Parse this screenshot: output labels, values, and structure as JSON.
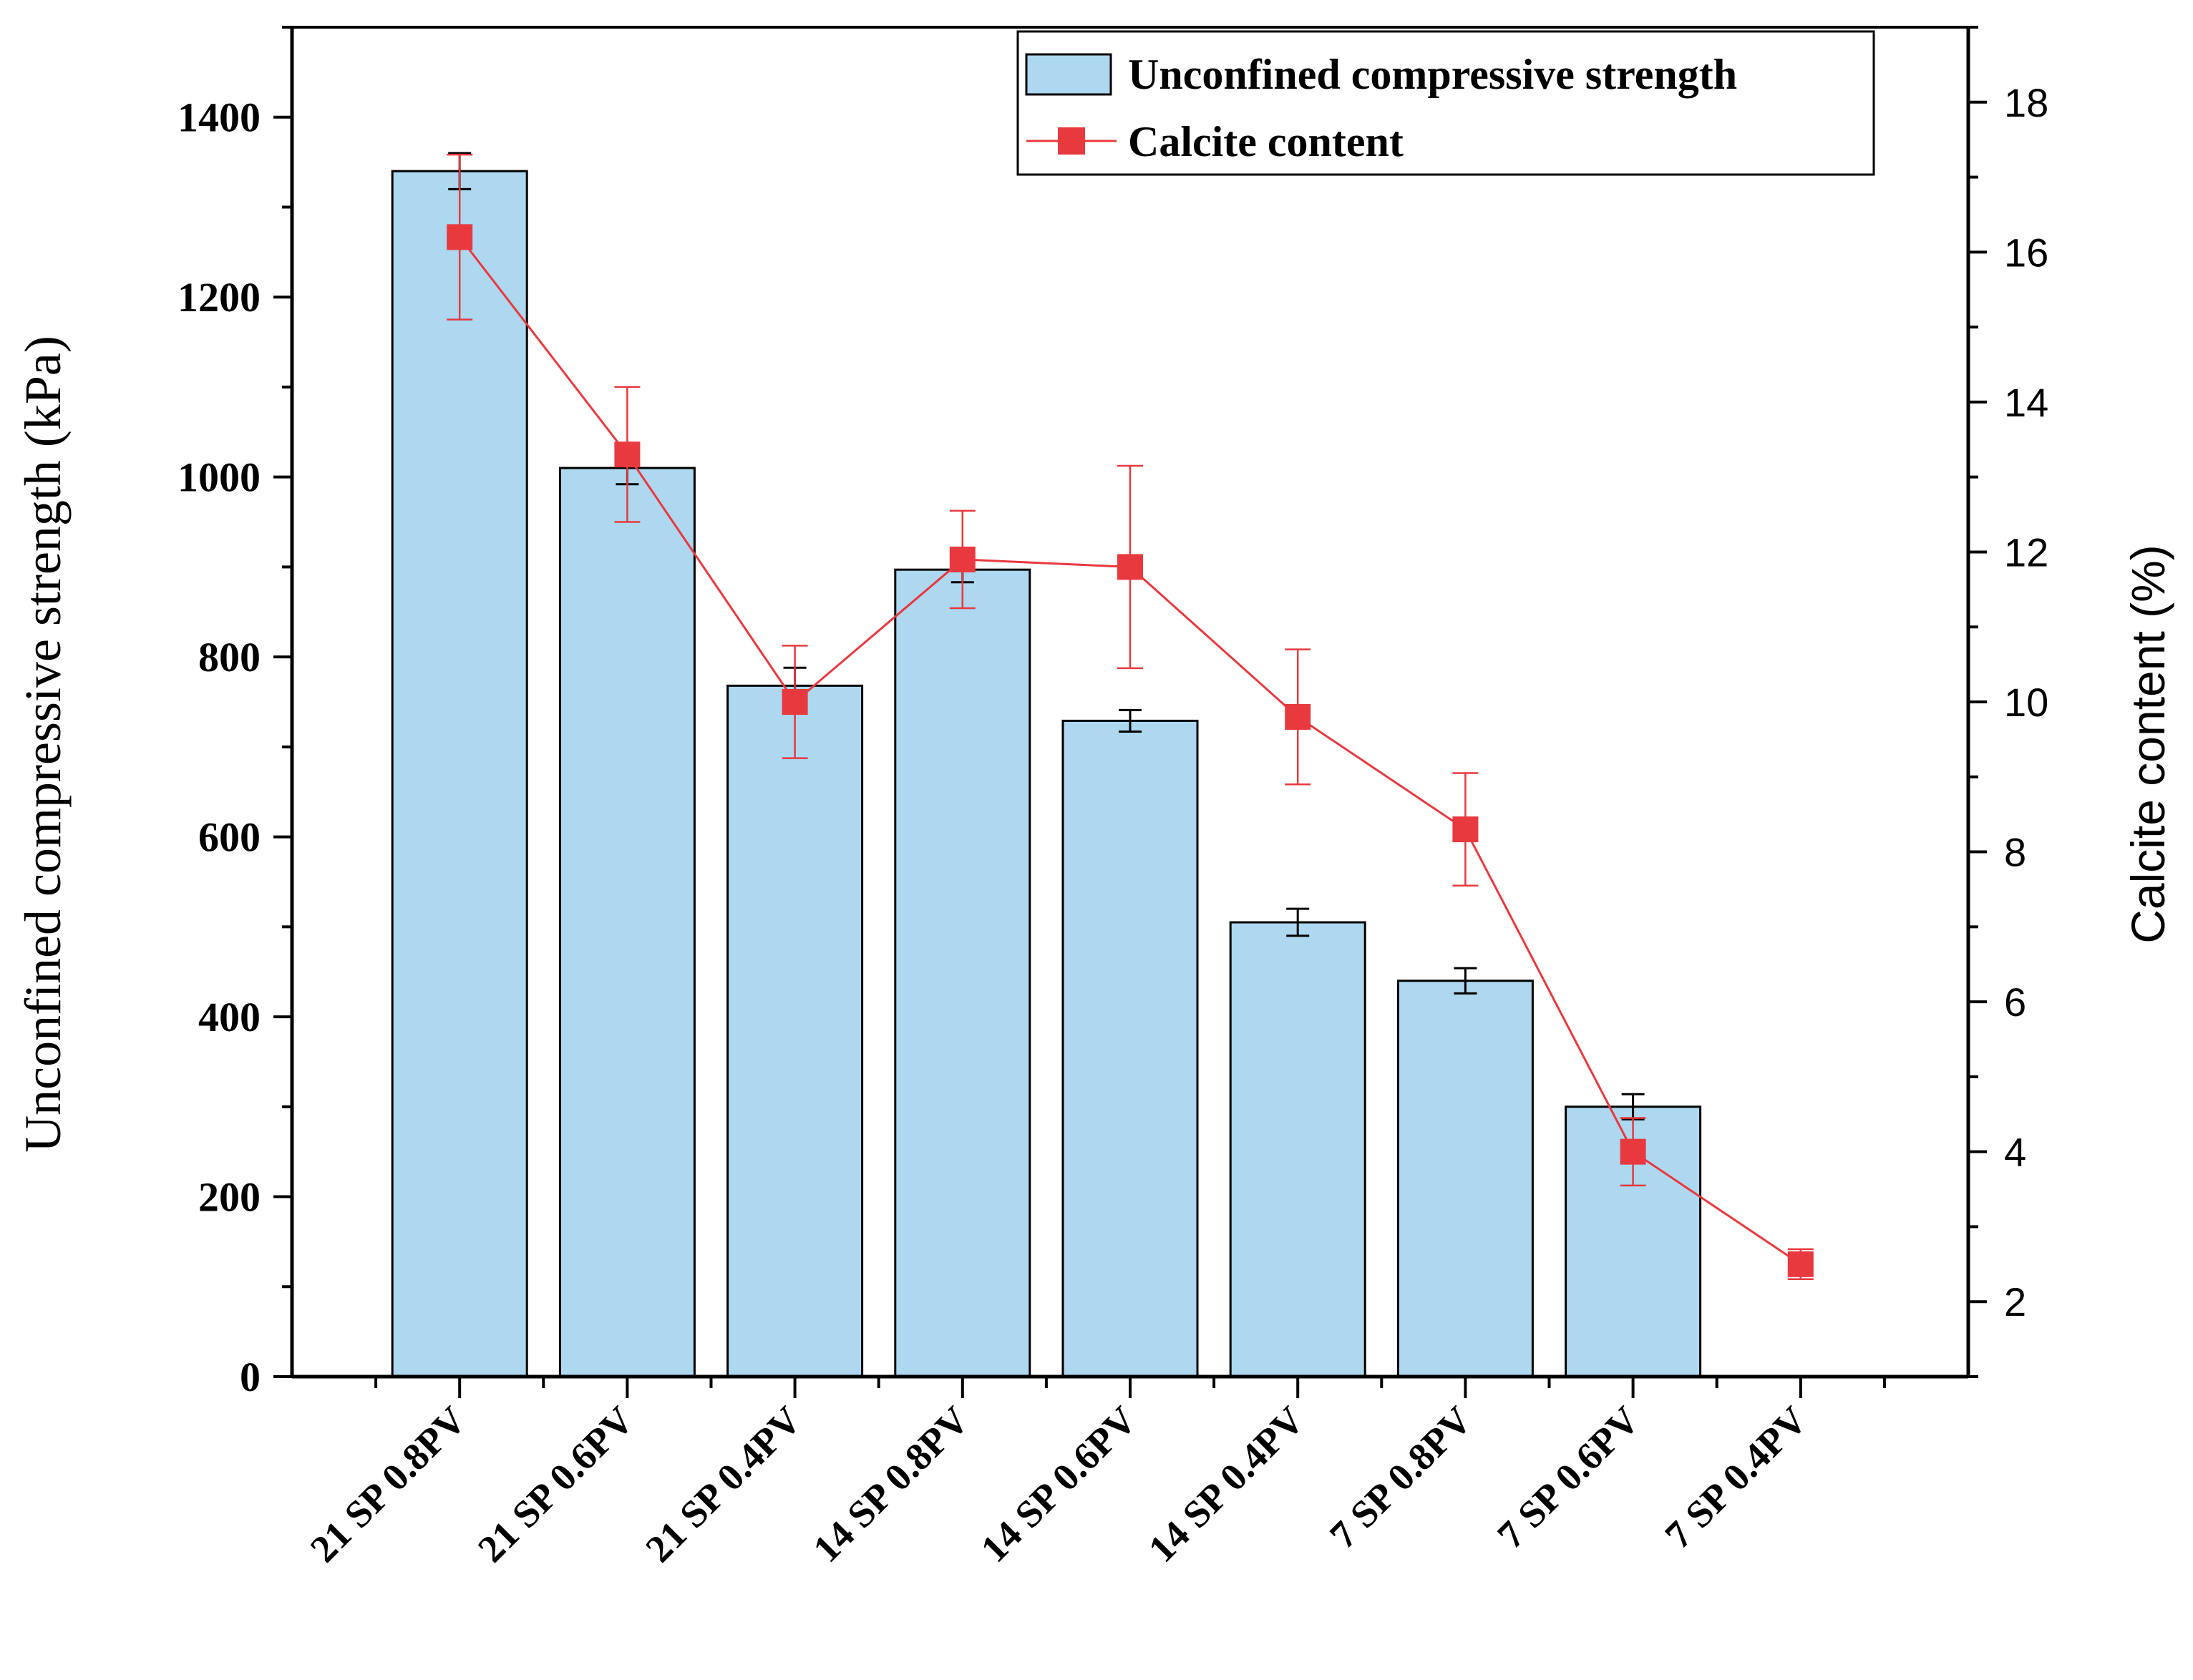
{
  "chart_data": {
    "type": "bar+line",
    "categories": [
      "21 SP 0.8PV",
      "21 SP 0.6PV",
      "21 SP 0.4PV",
      "14 SP 0.8PV",
      "14 SP 0.6PV",
      "14 SP 0.4PV",
      "7 SP 0.8PV",
      "7 SP 0.6PV",
      "7 SP 0.4PV"
    ],
    "series": [
      {
        "name": "Unconfined compressive strength",
        "type": "bar",
        "axis": "left",
        "values": [
          1340,
          1010,
          768,
          897,
          729,
          505,
          440,
          300,
          null
        ],
        "errors": [
          20,
          18,
          20,
          14,
          12,
          15,
          14,
          14,
          null
        ],
        "color": "#add8f0"
      },
      {
        "name": "Calcite content",
        "type": "line",
        "axis": "right",
        "values": [
          16.2,
          13.3,
          10.0,
          11.9,
          11.8,
          9.8,
          8.3,
          4.0,
          2.5
        ],
        "errors": [
          1.1,
          0.9,
          0.75,
          0.65,
          1.35,
          0.9,
          0.75,
          0.45,
          0.2
        ],
        "color": "#e8393f"
      }
    ],
    "ylabel": "Unconfined compressive strength (kPa)",
    "ylim": [
      0,
      1500
    ],
    "yticks": [
      0,
      200,
      400,
      600,
      800,
      1000,
      1200,
      1400
    ],
    "y2label": "Calcite content (%)",
    "y2lim": [
      1,
      19
    ],
    "y2ticks": [
      2,
      4,
      6,
      8,
      10,
      12,
      14,
      16,
      18
    ],
    "legend_position": "top-right",
    "grid": false
  }
}
